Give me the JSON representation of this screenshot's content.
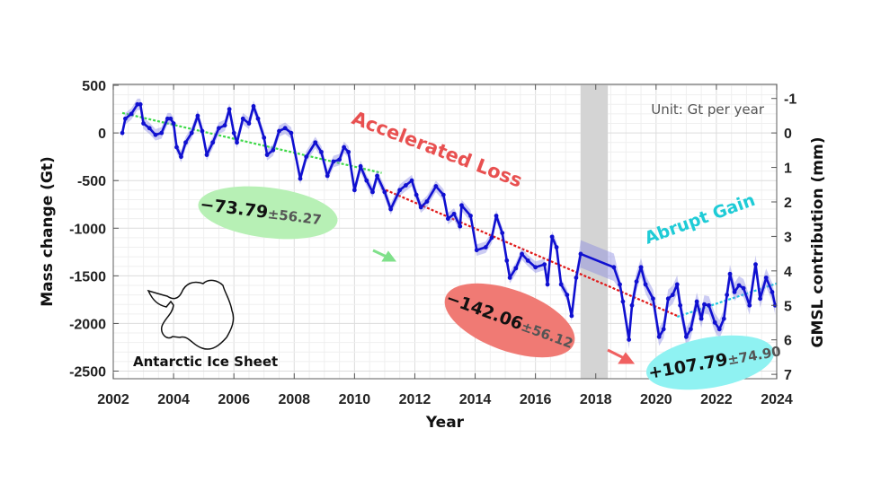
{
  "chart_data": {
    "type": "line",
    "xlabel": "Year",
    "ylabel": "Mass change (Gt)",
    "ylabel_right": "GMSL contribution (mm)",
    "xlim": [
      2002,
      2024
    ],
    "ylim": [
      -2580,
      510
    ],
    "ylim_right_mm": [
      -1,
      7
    ],
    "x_ticks": [
      2002,
      2004,
      2006,
      2008,
      2010,
      2012,
      2014,
      2016,
      2018,
      2020,
      2022,
      2024
    ],
    "y_ticks": [
      500,
      0,
      -500,
      -1000,
      -1500,
      -2000,
      -2500
    ],
    "y_ticks_right": [
      -1,
      0,
      1,
      2,
      3,
      4,
      5,
      6,
      7
    ],
    "grid": true,
    "data_gap_shaded": [
      2017.5,
      2018.4
    ],
    "unit_note": "Unit: Gt per year",
    "inset_label": "Antarctic Ice Sheet",
    "series": [
      {
        "color": "#1010d0",
        "band_color": "#8080e0",
        "x": [
          2002.3,
          2002.4,
          2002.6,
          2002.8,
          2002.9,
          2003.0,
          2003.2,
          2003.4,
          2003.6,
          2003.8,
          2003.9,
          2004.0,
          2004.1,
          2004.25,
          2004.4,
          2004.6,
          2004.8,
          2004.95,
          2005.1,
          2005.3,
          2005.5,
          2005.7,
          2005.85,
          2006.0,
          2006.1,
          2006.3,
          2006.5,
          2006.65,
          2006.8,
          2007.0,
          2007.1,
          2007.3,
          2007.5,
          2007.7,
          2007.9,
          2008.2,
          2008.4,
          2008.7,
          2008.9,
          2009.1,
          2009.3,
          2009.5,
          2009.65,
          2009.8,
          2010.0,
          2010.2,
          2010.4,
          2010.6,
          2010.75,
          2011.0,
          2011.2,
          2011.5,
          2011.7,
          2011.9,
          2012.05,
          2012.2,
          2012.4,
          2012.7,
          2012.95,
          2013.1,
          2013.3,
          2013.5,
          2013.55,
          2013.85,
          2014.05,
          2014.35,
          2014.55,
          2014.7,
          2014.9,
          2015.05,
          2015.15,
          2015.35,
          2015.55,
          2015.75,
          2016.0,
          2016.3,
          2016.4,
          2016.55,
          2016.7,
          2016.85,
          2017.05,
          2017.2,
          2017.35,
          2017.5,
          2018.6,
          2018.8,
          2018.9,
          2019.1,
          2019.2,
          2019.35,
          2019.5,
          2019.65,
          2019.9,
          2020.1,
          2020.25,
          2020.4,
          2020.55,
          2020.7,
          2020.8,
          2021.0,
          2021.15,
          2021.35,
          2021.5,
          2021.6,
          2021.75,
          2021.95,
          2022.1,
          2022.25,
          2022.35,
          2022.45,
          2022.6,
          2022.75,
          2022.9,
          2023.1,
          2023.3,
          2023.45,
          2023.65,
          2023.85,
          2023.95
        ],
        "y": [
          0,
          150,
          200,
          300,
          300,
          100,
          50,
          -20,
          0,
          150,
          150,
          100,
          -150,
          -250,
          -100,
          0,
          180,
          20,
          -230,
          -100,
          50,
          80,
          250,
          0,
          -100,
          150,
          100,
          280,
          150,
          -50,
          -230,
          -180,
          20,
          50,
          0,
          -480,
          -250,
          -100,
          -200,
          -450,
          -300,
          -280,
          -150,
          -200,
          -600,
          -350,
          -500,
          -620,
          -450,
          -620,
          -800,
          -600,
          -550,
          -500,
          -650,
          -780,
          -720,
          -560,
          -650,
          -900,
          -850,
          -980,
          -760,
          -870,
          -1230,
          -1200,
          -1100,
          -870,
          -1050,
          -1340,
          -1520,
          -1420,
          -1270,
          -1340,
          -1410,
          -1380,
          -1590,
          -1090,
          -1200,
          -1590,
          -1700,
          -1920,
          -1520,
          -1270,
          -1410,
          -1590,
          -1770,
          -2170,
          -1810,
          -1560,
          -1410,
          -1590,
          -1740,
          -2140,
          -2060,
          -1740,
          -1700,
          -1590,
          -1810,
          -2140,
          -2060,
          -1770,
          -1950,
          -1800,
          -1810,
          -1990,
          -2060,
          -1950,
          -1700,
          -1480,
          -1670,
          -1600,
          -1630,
          -1810,
          -1380,
          -1740,
          -1520,
          -1670,
          -1810
        ],
        "uncertainty_gt": 60
      }
    ],
    "trends": [
      {
        "label_value": "−73.79",
        "label_error": "±56.27",
        "color": "#3fd94a",
        "fill": "#b7f0b5",
        "x": [
          2002.3,
          2010.9
        ],
        "y": [
          210,
          -420
        ]
      },
      {
        "label_value": "−142.06",
        "label_error": "±56.12",
        "color": "#e01818",
        "fill": "#f07a74",
        "x": [
          2010.9,
          2020.7
        ],
        "y": [
          -580,
          -1920
        ]
      },
      {
        "label_value": "+107.79",
        "label_error": "±74.90",
        "color": "#1ec8e0",
        "fill": "#8ff2f2",
        "x": [
          2020.7,
          2024.0
        ],
        "y": [
          -1930,
          -1580
        ]
      }
    ],
    "annotations": [
      {
        "text": "Accelerated Loss",
        "color": "#e85050"
      },
      {
        "text": "Abrupt Gain",
        "color": "#1ecbd6"
      }
    ]
  }
}
